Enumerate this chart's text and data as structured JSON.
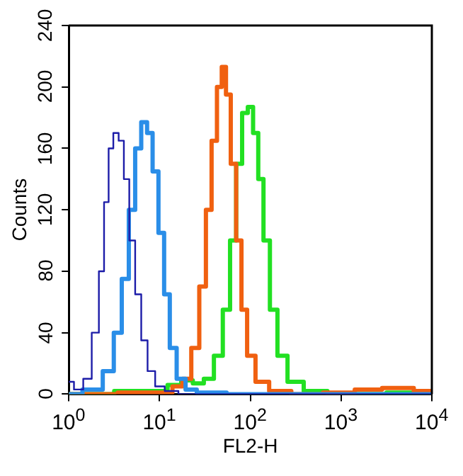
{
  "chart_data": {
    "type": "step",
    "xlabel": "FL2-H",
    "ylabel": "Counts",
    "log": "x",
    "xlim": [
      1,
      10000
    ],
    "ylim": [
      0,
      240
    ],
    "xticks": [
      {
        "value": 1,
        "label": "10$^{0}$"
      },
      {
        "value": 10,
        "label": "10$^{1}$"
      },
      {
        "value": 100,
        "label": "10$^{2}$"
      },
      {
        "value": 1000,
        "label": "10$^{3}$"
      },
      {
        "value": 10000,
        "label": "10$^{4}$"
      }
    ],
    "yticks": [
      0,
      40,
      80,
      120,
      160,
      200,
      240
    ],
    "grid": false,
    "legend": false,
    "series": [
      {
        "color": "#1c1ca8",
        "x": [
          1,
          1.3,
          1.6,
          2,
          2.3,
          2.6,
          2.9,
          3.3,
          3.8,
          4.3,
          5,
          5.8,
          6.8,
          8,
          10,
          13,
          20,
          10000
        ],
        "values": [
          8,
          3,
          10,
          40,
          80,
          125,
          160,
          170,
          165,
          140,
          100,
          65,
          35,
          15,
          5,
          2,
          0,
          0
        ]
      },
      {
        "color": "#2a8ee8",
        "x": [
          1,
          2,
          2.8,
          3.5,
          4.2,
          5,
          5.8,
          6.8,
          7.8,
          9,
          10.5,
          12,
          14,
          17,
          22,
          30,
          100,
          10000
        ],
        "values": [
          0,
          3,
          15,
          40,
          75,
          120,
          160,
          177,
          170,
          145,
          105,
          65,
          30,
          10,
          3,
          1,
          0,
          0
        ]
      },
      {
        "color": "#f06010",
        "x": [
          1,
          12,
          16,
          20,
          25,
          30,
          35,
          40,
          46,
          51,
          57,
          65,
          75,
          85,
          100,
          130,
          200,
          400,
          1000,
          2000,
          4000,
          10000
        ],
        "values": [
          0,
          1,
          5,
          10,
          30,
          70,
          120,
          165,
          200,
          213,
          195,
          150,
          100,
          55,
          25,
          8,
          2,
          0,
          1,
          3,
          4,
          2
        ]
      },
      {
        "color": "#22e022",
        "x": [
          1,
          10,
          15,
          20,
          27,
          35,
          45,
          55,
          65,
          75,
          88,
          100,
          115,
          130,
          150,
          180,
          220,
          300,
          500,
          1000,
          10000
        ],
        "values": [
          0,
          2,
          6,
          9,
          7,
          10,
          25,
          55,
          100,
          150,
          183,
          187,
          170,
          140,
          100,
          55,
          25,
          8,
          2,
          0,
          1
        ]
      }
    ]
  }
}
